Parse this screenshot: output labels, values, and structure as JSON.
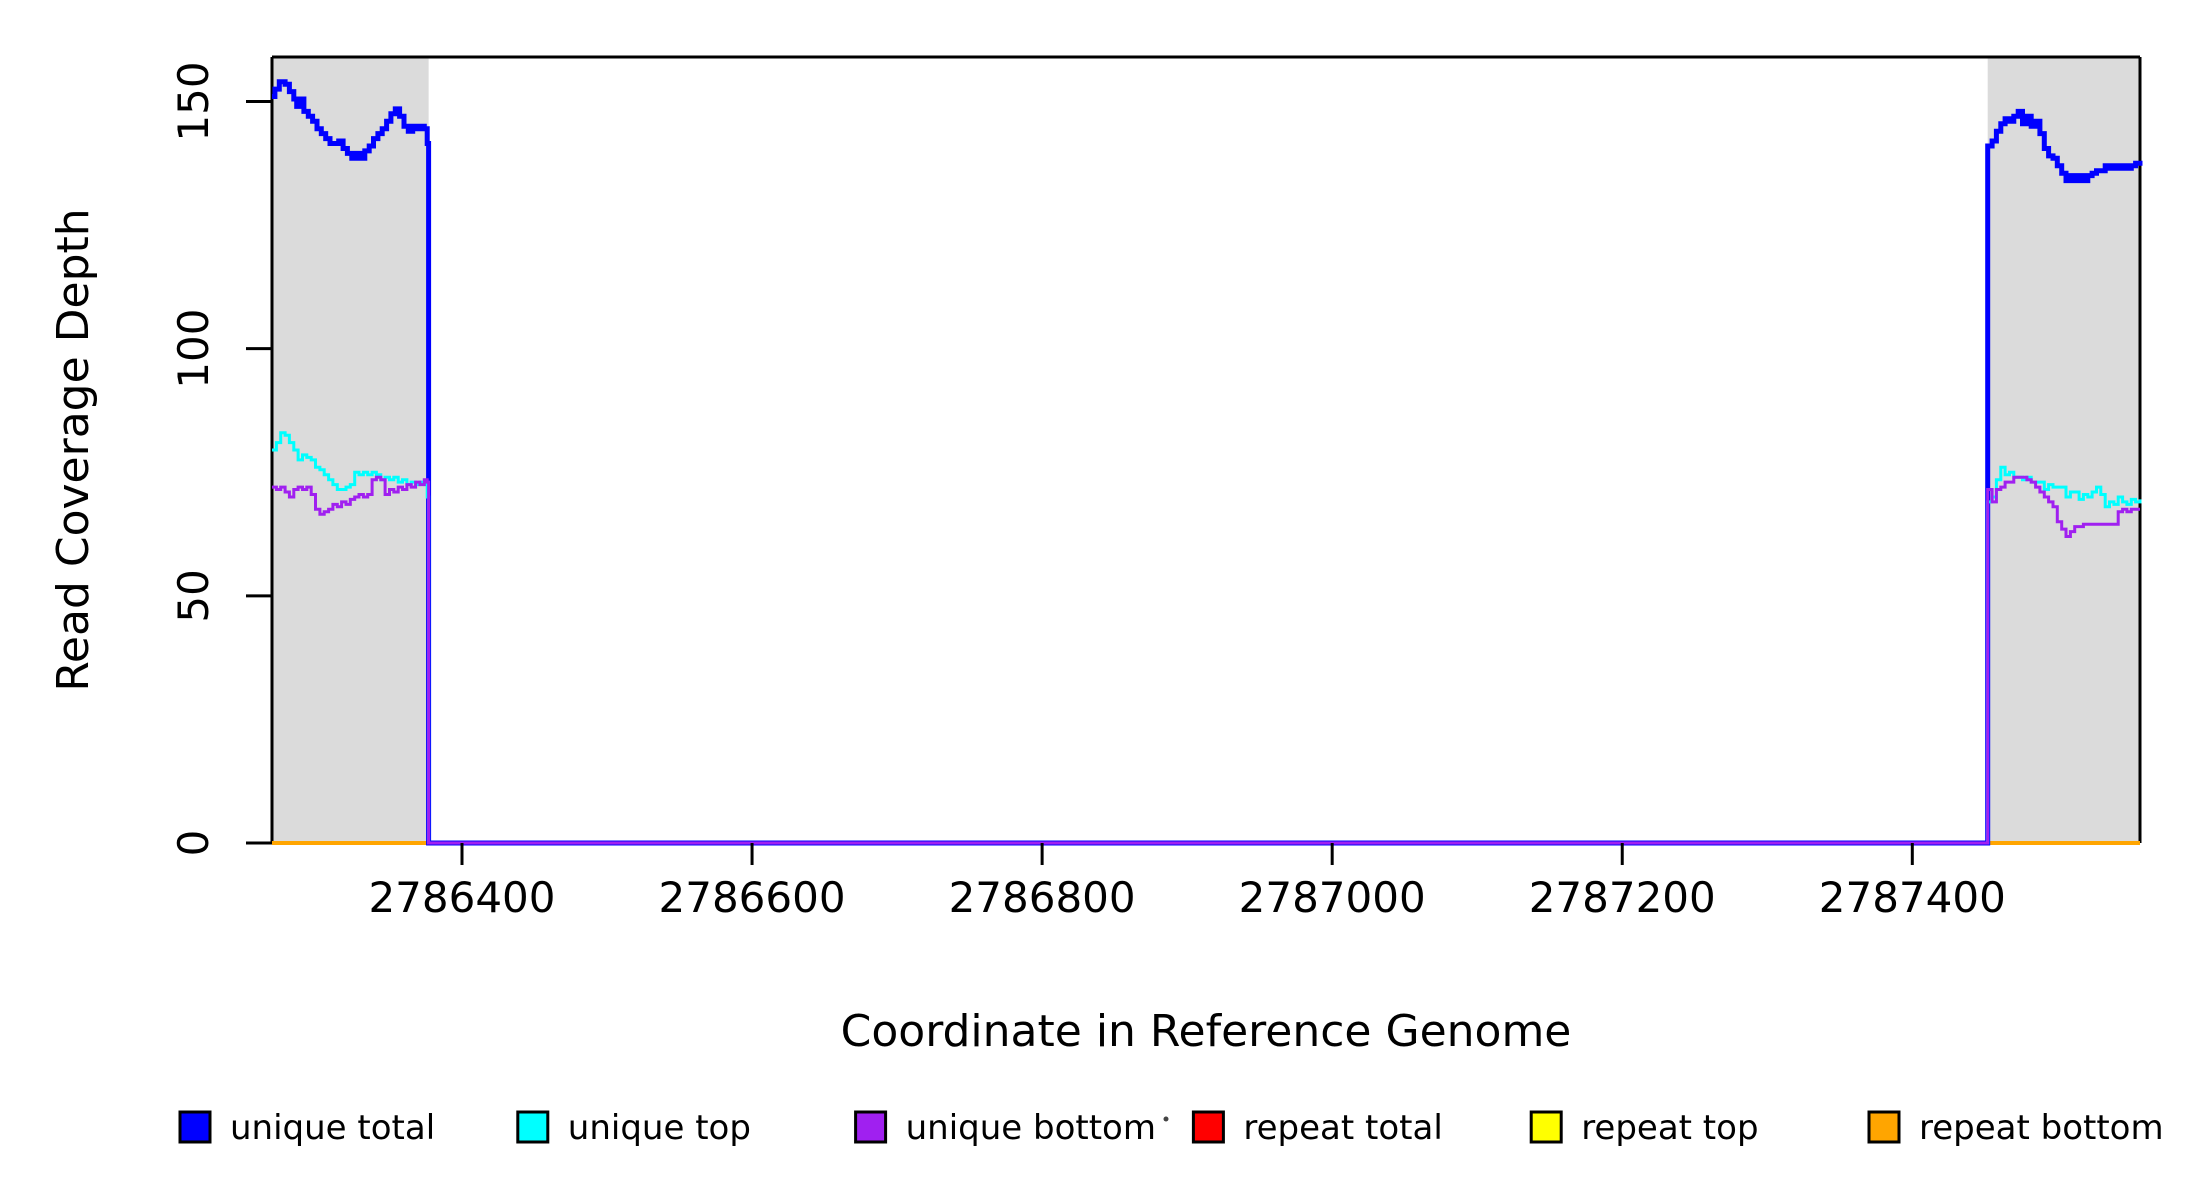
{
  "chart_data": {
    "type": "line",
    "subtype": "step",
    "title": "",
    "xlabel": "Coordinate in Reference Genome",
    "ylabel": "Read Coverage Depth",
    "xlim": [
      2786269,
      2787557
    ],
    "ylim": [
      0,
      159
    ],
    "x_ticks": [
      2786400,
      2786600,
      2786800,
      2787000,
      2787200,
      2787400
    ],
    "x_tick_labels": [
      "2786400",
      "2786600",
      "2786800",
      "2787000",
      "2787200",
      "2787400"
    ],
    "y_ticks": [
      0,
      50,
      100,
      150
    ],
    "y_tick_labels": [
      "0",
      "50",
      "100",
      "150"
    ],
    "grid": false,
    "plot_background": "#ffffff",
    "shaded_regions": [
      {
        "x0": 2786269,
        "x1": 2786377,
        "color": "#dbdbdb"
      },
      {
        "x0": 2787452,
        "x1": 2787557,
        "color": "#dbdbdb"
      }
    ],
    "legend": {
      "position": "bottom",
      "entries": [
        {
          "label": "unique total",
          "color": "#0000ff"
        },
        {
          "label": "unique top",
          "color": "#00ffff"
        },
        {
          "label": "unique bottom",
          "color": "#a020f0"
        },
        {
          "label": "repeat total",
          "color": "#ff0000"
        },
        {
          "label": "repeat top",
          "color": "#ffff00"
        },
        {
          "label": "repeat bottom",
          "color": "#ffa500"
        }
      ]
    },
    "series": [
      {
        "name": "repeat total",
        "color": "#ff0000",
        "width": 3,
        "points": [
          [
            2786269,
            0
          ],
          [
            2787557,
            0
          ]
        ]
      },
      {
        "name": "repeat top",
        "color": "#ffff00",
        "width": 3,
        "points": [
          [
            2786269,
            0
          ],
          [
            2787557,
            0
          ]
        ]
      },
      {
        "name": "repeat bottom",
        "color": "#ffa500",
        "width": 4,
        "points": [
          [
            2786269,
            0
          ],
          [
            2787557,
            0
          ]
        ]
      },
      {
        "name": "unique total",
        "color": "#0000ff",
        "width": 5,
        "points": [
          [
            2786269,
            151
          ],
          [
            2786271,
            152.5
          ],
          [
            2786274,
            154
          ],
          [
            2786278,
            153.5
          ],
          [
            2786281,
            152
          ],
          [
            2786284,
            150.5
          ],
          [
            2786286,
            149
          ],
          [
            2786289,
            150.5
          ],
          [
            2786291,
            148
          ],
          [
            2786294,
            147
          ],
          [
            2786297,
            146
          ],
          [
            2786300,
            144.5
          ],
          [
            2786303,
            143.5
          ],
          [
            2786306,
            142.5
          ],
          [
            2786309,
            141.5
          ],
          [
            2786312,
            141.5
          ],
          [
            2786315,
            142
          ],
          [
            2786318,
            140.5
          ],
          [
            2786321,
            139.5
          ],
          [
            2786324,
            138.5
          ],
          [
            2786327,
            139.5
          ],
          [
            2786330,
            138.5
          ],
          [
            2786333,
            140
          ],
          [
            2786336,
            141
          ],
          [
            2786339,
            142.5
          ],
          [
            2786342,
            143.5
          ],
          [
            2786345,
            144.5
          ],
          [
            2786348,
            146
          ],
          [
            2786351,
            147.5
          ],
          [
            2786354,
            148.5
          ],
          [
            2786357,
            147
          ],
          [
            2786360,
            145
          ],
          [
            2786363,
            144
          ],
          [
            2786366,
            145
          ],
          [
            2786369,
            144.5
          ],
          [
            2786372,
            145
          ],
          [
            2786374,
            144.5
          ],
          [
            2786376,
            141.5
          ],
          [
            2786377,
            0
          ],
          [
            2787452,
            141
          ],
          [
            2787455,
            142
          ],
          [
            2787458,
            144
          ],
          [
            2787461,
            145.5
          ],
          [
            2787464,
            146.5
          ],
          [
            2787467,
            146
          ],
          [
            2787470,
            147
          ],
          [
            2787473,
            148
          ],
          [
            2787476,
            145.5
          ],
          [
            2787479,
            147
          ],
          [
            2787482,
            145
          ],
          [
            2787485,
            146
          ],
          [
            2787488,
            143.5
          ],
          [
            2787491,
            140.5
          ],
          [
            2787494,
            139
          ],
          [
            2787497,
            138.5
          ],
          [
            2787500,
            137
          ],
          [
            2787503,
            135.5
          ],
          [
            2787506,
            134
          ],
          [
            2787509,
            135
          ],
          [
            2787512,
            134
          ],
          [
            2787515,
            135
          ],
          [
            2787518,
            134
          ],
          [
            2787521,
            135
          ],
          [
            2787524,
            135.5
          ],
          [
            2787527,
            136
          ],
          [
            2787530,
            136
          ],
          [
            2787533,
            137
          ],
          [
            2787536,
            136.5
          ],
          [
            2787539,
            137
          ],
          [
            2787542,
            136.5
          ],
          [
            2787545,
            137
          ],
          [
            2787548,
            136.5
          ],
          [
            2787551,
            137
          ],
          [
            2787554,
            137.5
          ],
          [
            2787557,
            138
          ]
        ]
      },
      {
        "name": "unique top",
        "color": "#00ffff",
        "width": 3,
        "points": [
          [
            2786269,
            79.5
          ],
          [
            2786272,
            81
          ],
          [
            2786275,
            83
          ],
          [
            2786278,
            82.5
          ],
          [
            2786281,
            81
          ],
          [
            2786284,
            79.5
          ],
          [
            2786287,
            77.5
          ],
          [
            2786290,
            78.5
          ],
          [
            2786293,
            78
          ],
          [
            2786296,
            77.5
          ],
          [
            2786299,
            76
          ],
          [
            2786302,
            75.5
          ],
          [
            2786305,
            74.5
          ],
          [
            2786308,
            73.5
          ],
          [
            2786311,
            72.5
          ],
          [
            2786314,
            71.5
          ],
          [
            2786317,
            71.5
          ],
          [
            2786320,
            72
          ],
          [
            2786323,
            72.5
          ],
          [
            2786326,
            75
          ],
          [
            2786329,
            74.5
          ],
          [
            2786332,
            75
          ],
          [
            2786335,
            74.5
          ],
          [
            2786338,
            75
          ],
          [
            2786341,
            74.5
          ],
          [
            2786344,
            73.5
          ],
          [
            2786347,
            74
          ],
          [
            2786350,
            73.5
          ],
          [
            2786353,
            74
          ],
          [
            2786356,
            73
          ],
          [
            2786359,
            73.5
          ],
          [
            2786362,
            72.5
          ],
          [
            2786365,
            73
          ],
          [
            2786368,
            72.5
          ],
          [
            2786371,
            73
          ],
          [
            2786374,
            72.5
          ],
          [
            2786376,
            70
          ],
          [
            2786377,
            0
          ],
          [
            2787452,
            69
          ],
          [
            2787455,
            70
          ],
          [
            2787458,
            73.5
          ],
          [
            2787461,
            76
          ],
          [
            2787464,
            74.5
          ],
          [
            2787467,
            75
          ],
          [
            2787470,
            74
          ],
          [
            2787473,
            74
          ],
          [
            2787476,
            73.5
          ],
          [
            2787479,
            74
          ],
          [
            2787482,
            73
          ],
          [
            2787485,
            73
          ],
          [
            2787488,
            73
          ],
          [
            2787491,
            71.5
          ],
          [
            2787494,
            72.5
          ],
          [
            2787497,
            72
          ],
          [
            2787500,
            72
          ],
          [
            2787503,
            72
          ],
          [
            2787506,
            70
          ],
          [
            2787509,
            71
          ],
          [
            2787512,
            71
          ],
          [
            2787515,
            69.5
          ],
          [
            2787518,
            70.5
          ],
          [
            2787521,
            70
          ],
          [
            2787524,
            71
          ],
          [
            2787527,
            72
          ],
          [
            2787530,
            70.5
          ],
          [
            2787533,
            68
          ],
          [
            2787536,
            69
          ],
          [
            2787539,
            68.5
          ],
          [
            2787542,
            70
          ],
          [
            2787545,
            69
          ],
          [
            2787548,
            68.5
          ],
          [
            2787551,
            69.5
          ],
          [
            2787554,
            69
          ],
          [
            2787557,
            69.5
          ]
        ]
      },
      {
        "name": "unique bottom",
        "color": "#a020f0",
        "width": 3,
        "points": [
          [
            2786269,
            72
          ],
          [
            2786272,
            71.5
          ],
          [
            2786275,
            72
          ],
          [
            2786278,
            71
          ],
          [
            2786281,
            70
          ],
          [
            2786284,
            71.5
          ],
          [
            2786287,
            72
          ],
          [
            2786290,
            71.5
          ],
          [
            2786293,
            72
          ],
          [
            2786296,
            70.5
          ],
          [
            2786299,
            67.5
          ],
          [
            2786302,
            66.5
          ],
          [
            2786305,
            67
          ],
          [
            2786308,
            67.5
          ],
          [
            2786311,
            68.5
          ],
          [
            2786314,
            68
          ],
          [
            2786317,
            69
          ],
          [
            2786320,
            68.5
          ],
          [
            2786323,
            69.5
          ],
          [
            2786326,
            70
          ],
          [
            2786329,
            70.5
          ],
          [
            2786332,
            70
          ],
          [
            2786335,
            70.5
          ],
          [
            2786338,
            73.5
          ],
          [
            2786341,
            74
          ],
          [
            2786344,
            73.5
          ],
          [
            2786347,
            70.5
          ],
          [
            2786350,
            71.5
          ],
          [
            2786353,
            71
          ],
          [
            2786356,
            72
          ],
          [
            2786359,
            71.5
          ],
          [
            2786362,
            72.5
          ],
          [
            2786365,
            72
          ],
          [
            2786368,
            73
          ],
          [
            2786371,
            72.5
          ],
          [
            2786374,
            73.5
          ],
          [
            2786376,
            73
          ],
          [
            2786377,
            0
          ],
          [
            2787452,
            71.5
          ],
          [
            2787455,
            69
          ],
          [
            2787458,
            71.5
          ],
          [
            2787461,
            72
          ],
          [
            2787464,
            73
          ],
          [
            2787467,
            73
          ],
          [
            2787470,
            74
          ],
          [
            2787473,
            74
          ],
          [
            2787476,
            74
          ],
          [
            2787479,
            73.5
          ],
          [
            2787482,
            73
          ],
          [
            2787485,
            72
          ],
          [
            2787488,
            71
          ],
          [
            2787491,
            70
          ],
          [
            2787494,
            69
          ],
          [
            2787497,
            68
          ],
          [
            2787500,
            65
          ],
          [
            2787503,
            63.5
          ],
          [
            2787506,
            62
          ],
          [
            2787509,
            63
          ],
          [
            2787512,
            64
          ],
          [
            2787515,
            64
          ],
          [
            2787518,
            64.5
          ],
          [
            2787521,
            64.5
          ],
          [
            2787524,
            64.5
          ],
          [
            2787527,
            64.5
          ],
          [
            2787530,
            64.5
          ],
          [
            2787533,
            64.5
          ],
          [
            2787536,
            64.5
          ],
          [
            2787539,
            64.5
          ],
          [
            2787542,
            67
          ],
          [
            2787545,
            67.5
          ],
          [
            2787548,
            67
          ],
          [
            2787551,
            67.5
          ],
          [
            2787554,
            67.5
          ],
          [
            2787557,
            67.5
          ]
        ]
      }
    ]
  }
}
